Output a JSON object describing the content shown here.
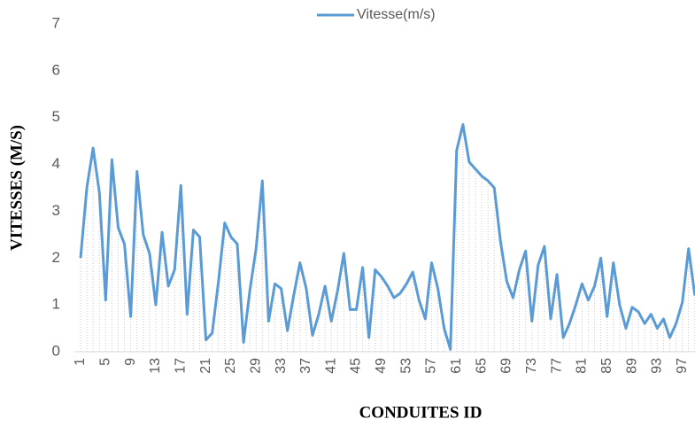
{
  "chart_data": {
    "type": "line",
    "ylabel": "VITESSES (M/S)",
    "xlabel": "CONDUITES ID",
    "categories": [
      "1",
      null,
      null,
      null,
      "5",
      null,
      null,
      null,
      "9",
      null,
      null,
      null,
      "13",
      null,
      null,
      null,
      "17",
      null,
      null,
      null,
      "21",
      null,
      null,
      null,
      "25",
      null,
      null,
      null,
      "29",
      null,
      null,
      null,
      "33",
      null,
      null,
      null,
      "37",
      null,
      null,
      null,
      "41",
      null,
      null,
      null,
      "45",
      null,
      null,
      null,
      "49",
      null,
      null,
      null,
      "53",
      null,
      null,
      null,
      "57",
      null,
      null,
      null,
      "61",
      null,
      null,
      null,
      "65",
      null,
      null,
      null,
      "69",
      null,
      null,
      null,
      "73",
      null,
      null,
      null,
      "77",
      null,
      null,
      null,
      "81",
      null,
      null,
      null,
      "85",
      null,
      null,
      null,
      "89",
      null,
      null,
      null,
      "93",
      null,
      null,
      null,
      "97",
      null,
      null
    ],
    "series": [
      {
        "name": "Vitesse(m/s)",
        "color": "#5b9bd5",
        "values": [
          2.0,
          3.5,
          4.35,
          3.4,
          1.1,
          4.1,
          2.65,
          2.3,
          0.75,
          3.85,
          2.5,
          2.1,
          1.0,
          2.55,
          1.4,
          1.75,
          3.55,
          0.8,
          2.6,
          2.45,
          0.25,
          0.4,
          1.5,
          2.75,
          2.45,
          2.3,
          0.2,
          1.3,
          2.2,
          3.65,
          0.65,
          1.45,
          1.35,
          0.45,
          1.2,
          1.9,
          1.35,
          0.35,
          0.8,
          1.4,
          0.65,
          1.3,
          2.1,
          0.9,
          0.9,
          1.8,
          0.3,
          1.75,
          1.6,
          1.4,
          1.15,
          1.25,
          1.45,
          1.7,
          1.1,
          0.7,
          1.9,
          1.35,
          0.5,
          0.05,
          4.3,
          4.85,
          4.05,
          3.9,
          3.75,
          3.65,
          3.5,
          2.35,
          1.5,
          1.15,
          1.75,
          2.15,
          0.65,
          1.85,
          2.25,
          0.7,
          1.65,
          0.3,
          0.6,
          1.0,
          1.45,
          1.1,
          1.4,
          2.0,
          0.75,
          1.9,
          1.0,
          0.5,
          0.95,
          0.85,
          0.6,
          0.8,
          0.5,
          0.7,
          0.3,
          0.6,
          1.05,
          2.2,
          1.2
        ]
      }
    ],
    "ylim": [
      0,
      7
    ],
    "yticks": [
      0,
      1,
      2,
      3,
      4,
      5,
      6,
      7
    ],
    "grid": false,
    "legend": "top"
  }
}
